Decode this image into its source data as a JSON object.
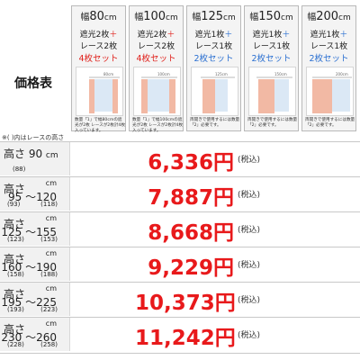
{
  "page_title": "価格表",
  "note": "※( )内はレースの高さ",
  "cards": [
    {
      "prefix": "幅",
      "width": "80",
      "unit": "cm",
      "line2a": "遮光2枚",
      "line2b": "＋",
      "line3": "レース2枚",
      "line4": "4枚セット",
      "size_label": "80cm",
      "desc": "数量「1」で幅80cmの遮光が2枚 レースが2枚計4枚入っています。"
    },
    {
      "prefix": "幅",
      "width": "100",
      "unit": "cm",
      "line2a": "遮光2枚",
      "line2b": "＋",
      "line3": "レース2枚",
      "line4": "4枚セット",
      "size_label": "100cm",
      "desc": "数量「1」で幅100cmの遮光が2枚 レースが2枚計4枚入っています。"
    },
    {
      "prefix": "幅",
      "width": "125",
      "unit": "cm",
      "line2a": "遮光1枚",
      "line2b": "＋",
      "line3": "レース1枚",
      "line4": "2枚セット",
      "size_label": "125cm",
      "desc": "両開きで使用するには数量「2」必要です。"
    },
    {
      "prefix": "幅",
      "width": "150",
      "unit": "cm",
      "line2a": "遮光1枚",
      "line2b": "＋",
      "line3": "レース1枚",
      "line4": "2枚セット",
      "size_label": "150cm",
      "desc": "両開きで使用するには数量「2」必要です。"
    },
    {
      "prefix": "幅",
      "width": "200",
      "unit": "cm",
      "line2a": "遮光1枚",
      "line2b": "＋",
      "line3": "レース1枚",
      "line4": "2枚セット",
      "size_label": "200cm",
      "desc": "両開きで使用するには数量「2」必要です。"
    }
  ],
  "rows": [
    {
      "label_main": "高さ 90",
      "label_unit": "cm",
      "label_range": "",
      "sub_a": "(88)",
      "sub_b": "",
      "price": "6,336円",
      "tax": "(税込)"
    },
    {
      "label_main": "高さ",
      "label_unit": "cm",
      "label_range": "95 ～120",
      "sub_a": "(93)",
      "sub_b": "(118)",
      "price": "7,887円",
      "tax": "(税込)"
    },
    {
      "label_main": "高さ",
      "label_unit": "cm",
      "label_range": "125 ～155",
      "sub_a": "(123)",
      "sub_b": "(153)",
      "price": "8,668円",
      "tax": "(税込)"
    },
    {
      "label_main": "高さ",
      "label_unit": "cm",
      "label_range": "160 ～190",
      "sub_a": "(158)",
      "sub_b": "(188)",
      "price": "9,229円",
      "tax": "(税込)"
    },
    {
      "label_main": "高さ",
      "label_unit": "cm",
      "label_range": "195 ～225",
      "sub_a": "(193)",
      "sub_b": "(223)",
      "price": "10,373円",
      "tax": "(税込)"
    },
    {
      "label_main": "高さ",
      "label_unit": "cm",
      "label_range": "230 ～260",
      "sub_a": "(228)",
      "sub_b": "(258)",
      "price": "11,242円",
      "tax": "(税込)"
    }
  ],
  "colors": {
    "price_red": "#e8191b",
    "accent_blue": "#2a6fd1",
    "curtain_pink": "#f2b9a4",
    "lace_blue": "#b9d2ea"
  },
  "icons": [
    "curtain-illustration-icon"
  ]
}
